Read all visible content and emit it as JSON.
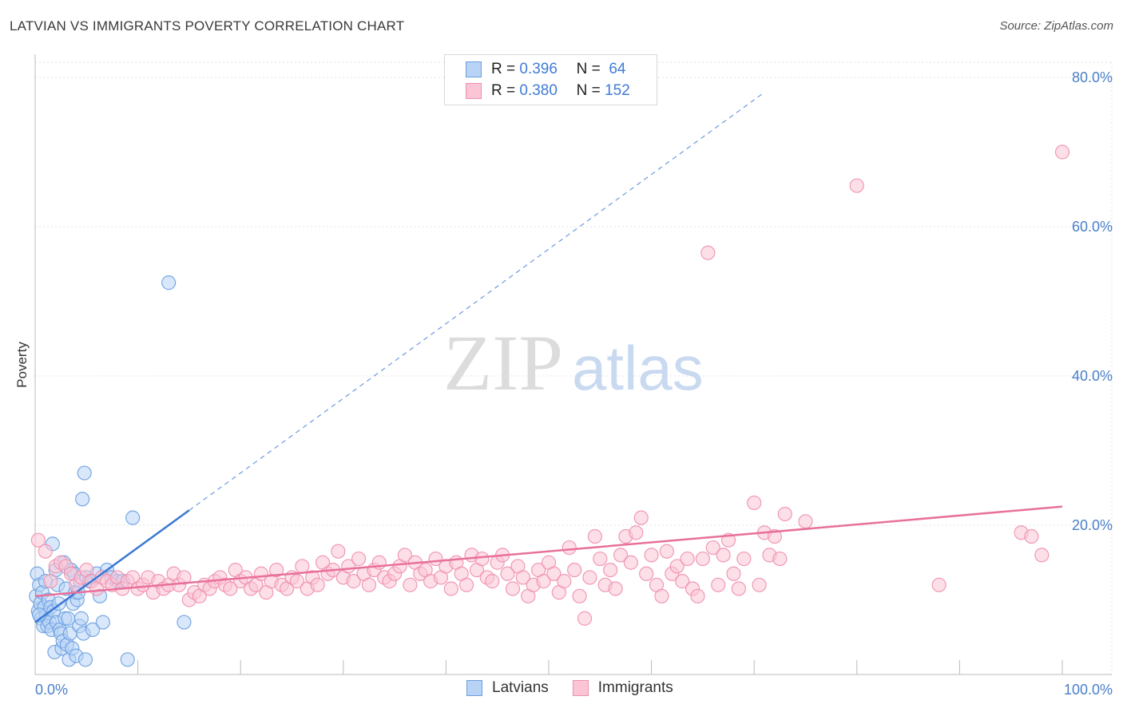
{
  "title": "LATVIAN VS IMMIGRANTS POVERTY CORRELATION CHART",
  "source": "Source: ZipAtlas.com",
  "watermark": {
    "zip": "ZIP",
    "atlas": "atlas"
  },
  "legend": {
    "rows": [
      {
        "r_label": "R =",
        "r_value": "0.396",
        "n_label": "N =",
        "n_value": "64",
        "fill": "#b8d3f5",
        "stroke": "#6a9fe0"
      },
      {
        "r_label": "R =",
        "r_value": "0.380",
        "n_label": "N =",
        "n_value": "152",
        "fill": "#fbc5d5",
        "stroke": "#ee8fae"
      }
    ]
  },
  "bottom_legend": [
    {
      "label": "Latvians",
      "fill": "#b8d3f5",
      "stroke": "#6a9fe0"
    },
    {
      "label": "Immigrants",
      "fill": "#fbc5d5",
      "stroke": "#ee8fae"
    }
  ],
  "chart_data": {
    "type": "scatter",
    "ylabel": "Poverty",
    "xlabel": "",
    "xlim": [
      0,
      100
    ],
    "ylim": [
      0,
      80
    ],
    "x_tick_labels": [
      "0.0%",
      "100.0%"
    ],
    "y_tick_labels": [
      "20.0%",
      "40.0%",
      "60.0%",
      "80.0%"
    ],
    "y_ticks": [
      20,
      40,
      60,
      80
    ],
    "grid": true,
    "legend_position": "top-center",
    "series": [
      {
        "name": "Latvians",
        "color": "#6a9fe0",
        "fill": "#b8d3f5",
        "trend": {
          "x0": 0,
          "y0": 7.0,
          "x1": 15,
          "y1": 22.0,
          "dashed_to_x": 71,
          "dashed_to_y": 78.0,
          "color": "#3a78d4"
        },
        "points": [
          [
            0.1,
            10.5
          ],
          [
            0.2,
            13.5
          ],
          [
            0.3,
            8.5
          ],
          [
            0.4,
            12.0
          ],
          [
            0.5,
            9.5
          ],
          [
            0.6,
            7.5
          ],
          [
            0.7,
            11.0
          ],
          [
            0.8,
            6.5
          ],
          [
            0.9,
            9.0
          ],
          [
            1.0,
            12.5
          ],
          [
            1.1,
            8.0
          ],
          [
            1.2,
            6.5
          ],
          [
            1.3,
            10.0
          ],
          [
            1.4,
            7.0
          ],
          [
            1.5,
            9.0
          ],
          [
            1.6,
            6.0
          ],
          [
            1.7,
            17.5
          ],
          [
            1.8,
            8.5
          ],
          [
            1.9,
            3.0
          ],
          [
            2.0,
            14.0
          ],
          [
            2.1,
            7.0
          ],
          [
            2.2,
            12.0
          ],
          [
            2.3,
            9.5
          ],
          [
            2.4,
            6.0
          ],
          [
            2.5,
            5.5
          ],
          [
            2.6,
            3.5
          ],
          [
            2.7,
            4.5
          ],
          [
            2.8,
            15.0
          ],
          [
            2.9,
            7.5
          ],
          [
            3.0,
            11.5
          ],
          [
            3.1,
            4.0
          ],
          [
            3.2,
            7.5
          ],
          [
            3.3,
            2.0
          ],
          [
            3.4,
            5.5
          ],
          [
            3.5,
            14.0
          ],
          [
            3.6,
            3.5
          ],
          [
            3.7,
            9.5
          ],
          [
            3.8,
            13.5
          ],
          [
            3.9,
            11.0
          ],
          [
            4.0,
            2.5
          ],
          [
            4.1,
            10.0
          ],
          [
            4.2,
            11.0
          ],
          [
            4.3,
            6.5
          ],
          [
            4.4,
            12.5
          ],
          [
            4.5,
            7.5
          ],
          [
            4.6,
            23.5
          ],
          [
            4.7,
            5.5
          ],
          [
            4.8,
            27.0
          ],
          [
            4.9,
            2.0
          ],
          [
            5.0,
            13.0
          ],
          [
            5.3,
            12.5
          ],
          [
            5.6,
            6.0
          ],
          [
            6.0,
            13.5
          ],
          [
            6.3,
            10.5
          ],
          [
            6.6,
            7.0
          ],
          [
            7.0,
            14.0
          ],
          [
            7.4,
            13.0
          ],
          [
            8.0,
            12.5
          ],
          [
            8.5,
            12.5
          ],
          [
            9.0,
            2.0
          ],
          [
            9.5,
            21.0
          ],
          [
            13.0,
            52.5
          ],
          [
            14.5,
            7.0
          ],
          [
            0.4,
            8.0
          ]
        ]
      },
      {
        "name": "Immigrants",
        "color": "#ee8fae",
        "fill": "#fbc5d5",
        "trend": {
          "x0": 0,
          "y0": 10.5,
          "x1": 100,
          "y1": 22.5,
          "color": "#e8709a"
        },
        "points": [
          [
            0.3,
            18.0
          ],
          [
            1.0,
            16.5
          ],
          [
            1.5,
            12.5
          ],
          [
            2.0,
            14.5
          ],
          [
            2.5,
            15.0
          ],
          [
            3.0,
            14.5
          ],
          [
            3.5,
            13.5
          ],
          [
            4.0,
            12.0
          ],
          [
            4.5,
            13.0
          ],
          [
            5.0,
            14.0
          ],
          [
            5.5,
            12.5
          ],
          [
            6.0,
            11.5
          ],
          [
            6.5,
            13.0
          ],
          [
            7.0,
            12.5
          ],
          [
            7.5,
            12.0
          ],
          [
            8.0,
            13.0
          ],
          [
            8.5,
            11.5
          ],
          [
            9.0,
            12.5
          ],
          [
            9.5,
            13.0
          ],
          [
            10.0,
            11.5
          ],
          [
            10.5,
            12.0
          ],
          [
            11.0,
            13.0
          ],
          [
            11.5,
            11.0
          ],
          [
            12.0,
            12.5
          ],
          [
            12.5,
            11.5
          ],
          [
            13.0,
            12.0
          ],
          [
            13.5,
            13.5
          ],
          [
            14.0,
            12.0
          ],
          [
            14.5,
            13.0
          ],
          [
            15.0,
            10.0
          ],
          [
            15.5,
            11.0
          ],
          [
            16.0,
            10.5
          ],
          [
            16.5,
            12.0
          ],
          [
            17.0,
            11.5
          ],
          [
            17.5,
            12.5
          ],
          [
            18.0,
            13.0
          ],
          [
            18.5,
            12.0
          ],
          [
            19.0,
            11.5
          ],
          [
            19.5,
            14.0
          ],
          [
            20.0,
            12.5
          ],
          [
            20.5,
            13.0
          ],
          [
            21.0,
            11.5
          ],
          [
            21.5,
            12.0
          ],
          [
            22.0,
            13.5
          ],
          [
            22.5,
            11.0
          ],
          [
            23.0,
            12.5
          ],
          [
            23.5,
            14.0
          ],
          [
            24.0,
            12.0
          ],
          [
            24.5,
            11.5
          ],
          [
            25.0,
            13.0
          ],
          [
            25.5,
            12.5
          ],
          [
            26.0,
            14.5
          ],
          [
            26.5,
            11.5
          ],
          [
            27.0,
            13.0
          ],
          [
            27.5,
            12.0
          ],
          [
            28.0,
            15.0
          ],
          [
            28.5,
            13.5
          ],
          [
            29.0,
            14.0
          ],
          [
            29.5,
            16.5
          ],
          [
            30.0,
            13.0
          ],
          [
            30.5,
            14.5
          ],
          [
            31.0,
            12.5
          ],
          [
            31.5,
            15.5
          ],
          [
            32.0,
            13.5
          ],
          [
            32.5,
            12.0
          ],
          [
            33.0,
            14.0
          ],
          [
            33.5,
            15.0
          ],
          [
            34.0,
            13.0
          ],
          [
            34.5,
            12.5
          ],
          [
            35.0,
            13.5
          ],
          [
            35.5,
            14.5
          ],
          [
            36.0,
            16.0
          ],
          [
            36.5,
            12.0
          ],
          [
            37.0,
            15.0
          ],
          [
            37.5,
            13.5
          ],
          [
            38.0,
            14.0
          ],
          [
            38.5,
            12.5
          ],
          [
            39.0,
            15.5
          ],
          [
            39.5,
            13.0
          ],
          [
            40.0,
            14.5
          ],
          [
            40.5,
            11.5
          ],
          [
            41.0,
            15.0
          ],
          [
            41.5,
            13.5
          ],
          [
            42.0,
            12.0
          ],
          [
            42.5,
            16.0
          ],
          [
            43.0,
            14.0
          ],
          [
            43.5,
            15.5
          ],
          [
            44.0,
            13.0
          ],
          [
            44.5,
            12.5
          ],
          [
            45.0,
            15.0
          ],
          [
            45.5,
            16.0
          ],
          [
            46.0,
            13.5
          ],
          [
            46.5,
            11.5
          ],
          [
            47.0,
            14.5
          ],
          [
            47.5,
            13.0
          ],
          [
            48.0,
            10.5
          ],
          [
            48.5,
            12.0
          ],
          [
            49.0,
            14.0
          ],
          [
            49.5,
            12.5
          ],
          [
            50.0,
            15.0
          ],
          [
            50.5,
            13.5
          ],
          [
            51.0,
            11.0
          ],
          [
            51.5,
            12.5
          ],
          [
            52.0,
            17.0
          ],
          [
            52.5,
            14.0
          ],
          [
            53.0,
            10.5
          ],
          [
            53.5,
            7.5
          ],
          [
            54.0,
            13.0
          ],
          [
            54.5,
            18.5
          ],
          [
            55.0,
            15.5
          ],
          [
            55.5,
            12.0
          ],
          [
            56.0,
            14.0
          ],
          [
            56.5,
            11.5
          ],
          [
            57.0,
            16.0
          ],
          [
            57.5,
            18.5
          ],
          [
            58.0,
            15.0
          ],
          [
            58.5,
            19.0
          ],
          [
            59.0,
            21.0
          ],
          [
            59.5,
            13.5
          ],
          [
            60.0,
            16.0
          ],
          [
            60.5,
            12.0
          ],
          [
            61.0,
            10.5
          ],
          [
            61.5,
            16.5
          ],
          [
            62.0,
            13.5
          ],
          [
            62.5,
            14.5
          ],
          [
            63.0,
            12.5
          ],
          [
            63.5,
            15.5
          ],
          [
            64.0,
            11.5
          ],
          [
            64.5,
            10.5
          ],
          [
            65.0,
            15.5
          ],
          [
            65.5,
            56.5
          ],
          [
            66.0,
            17.0
          ],
          [
            66.5,
            12.0
          ],
          [
            67.0,
            16.0
          ],
          [
            67.5,
            18.0
          ],
          [
            68.0,
            13.5
          ],
          [
            68.5,
            11.5
          ],
          [
            69.0,
            15.5
          ],
          [
            70.0,
            23.0
          ],
          [
            70.5,
            12.0
          ],
          [
            71.0,
            19.0
          ],
          [
            71.5,
            16.0
          ],
          [
            72.0,
            18.5
          ],
          [
            72.5,
            15.5
          ],
          [
            73.0,
            21.5
          ],
          [
            75.0,
            20.5
          ],
          [
            80.0,
            65.5
          ],
          [
            88.0,
            12.0
          ],
          [
            100.0,
            70.0
          ],
          [
            96.0,
            19.0
          ],
          [
            97.0,
            18.5
          ],
          [
            98.0,
            16.0
          ]
        ]
      }
    ]
  }
}
